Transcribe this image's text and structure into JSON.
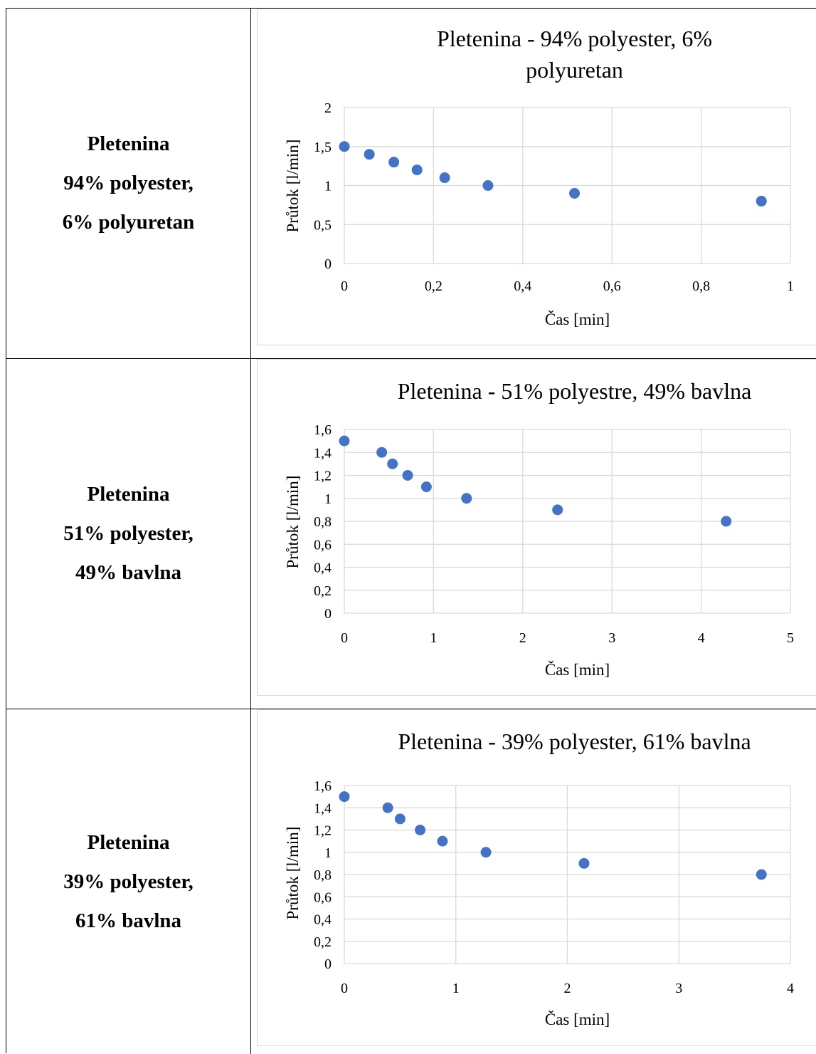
{
  "rows": [
    {
      "label_lines": [
        "Pletenina",
        "94% polyester,",
        "6% polyuretan"
      ]
    },
    {
      "label_lines": [
        "Pletenina",
        "51% polyester,",
        "49% bavlna"
      ]
    },
    {
      "label_lines": [
        "Pletenina",
        "39% polyester,",
        "61% bavlna"
      ]
    }
  ],
  "colors": {
    "marker": "#4472C4",
    "grid": "#d9d9d9",
    "frame": "#d9d9d9"
  },
  "chart_data": [
    {
      "type": "scatter",
      "title_lines": [
        "Pletenina - 94% polyester, 6%",
        "polyuretan"
      ],
      "xlabel": "Čas [min]",
      "ylabel": "Průtok [l/min]",
      "xlim": [
        0,
        1
      ],
      "ylim": [
        0,
        2
      ],
      "xticks": [
        0,
        0.2,
        0.4,
        0.6,
        0.8,
        1
      ],
      "yticks": [
        0,
        0.5,
        1,
        1.5,
        2
      ],
      "xtick_labels": [
        "0",
        "0,2",
        "0,4",
        "0,6",
        "0,8",
        "1"
      ],
      "ytick_labels": [
        "0",
        "0,5",
        "1",
        "1,5",
        "2"
      ],
      "grid": true,
      "x": [
        0,
        0.056,
        0.111,
        0.163,
        0.225,
        0.322,
        0.516,
        0.935
      ],
      "y": [
        1.5,
        1.4,
        1.3,
        1.2,
        1.1,
        1.0,
        0.9,
        0.8
      ]
    },
    {
      "type": "scatter",
      "title_lines": [
        "Pletenina - 51% polyestre, 49% bavlna"
      ],
      "xlabel": "Čas [min]",
      "ylabel": "Průtok [l/min]",
      "xlim": [
        0,
        5
      ],
      "ylim": [
        0,
        1.6
      ],
      "xticks": [
        0,
        1,
        2,
        3,
        4,
        5
      ],
      "yticks": [
        0,
        0.2,
        0.4,
        0.6,
        0.8,
        1,
        1.2,
        1.4,
        1.6
      ],
      "xtick_labels": [
        "0",
        "1",
        "2",
        "3",
        "4",
        "5"
      ],
      "ytick_labels": [
        "0",
        "0,2",
        "0,4",
        "0,6",
        "0,8",
        "1",
        "1,2",
        "1,4",
        "1,6"
      ],
      "grid": true,
      "x": [
        0,
        0.42,
        0.54,
        0.71,
        0.92,
        1.37,
        2.39,
        4.28
      ],
      "y": [
        1.5,
        1.4,
        1.3,
        1.2,
        1.1,
        1.0,
        0.9,
        0.8
      ]
    },
    {
      "type": "scatter",
      "title_lines": [
        "Pletenina - 39% polyester, 61% bavlna"
      ],
      "xlabel": "Čas [min]",
      "ylabel": "Průtok [l/min]",
      "xlim": [
        0,
        4
      ],
      "ylim": [
        0,
        1.6
      ],
      "xticks": [
        0,
        1,
        2,
        3,
        4
      ],
      "yticks": [
        0,
        0.2,
        0.4,
        0.6,
        0.8,
        1,
        1.2,
        1.4,
        1.6
      ],
      "xtick_labels": [
        "0",
        "1",
        "2",
        "3",
        "4"
      ],
      "ytick_labels": [
        "0",
        "0,2",
        "0,4",
        "0,6",
        "0,8",
        "1",
        "1,2",
        "1,4",
        "1,6"
      ],
      "grid": true,
      "x": [
        0,
        0.39,
        0.5,
        0.68,
        0.88,
        1.27,
        2.15,
        3.74
      ],
      "y": [
        1.5,
        1.4,
        1.3,
        1.2,
        1.1,
        1.0,
        0.9,
        0.8
      ]
    }
  ]
}
